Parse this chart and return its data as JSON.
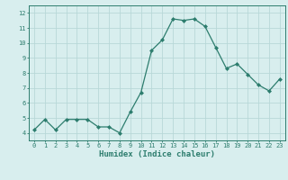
{
  "x": [
    0,
    1,
    2,
    3,
    4,
    5,
    6,
    7,
    8,
    9,
    10,
    11,
    12,
    13,
    14,
    15,
    16,
    17,
    18,
    19,
    20,
    21,
    22,
    23
  ],
  "y": [
    4.2,
    4.9,
    4.2,
    4.9,
    4.9,
    4.9,
    4.4,
    4.4,
    4.0,
    5.4,
    6.7,
    9.5,
    10.2,
    11.6,
    11.5,
    11.6,
    11.1,
    9.7,
    8.3,
    8.6,
    7.9,
    7.2,
    6.8,
    7.6
  ],
  "xlabel": "Humidex (Indice chaleur)",
  "ylim": [
    3.5,
    12.5
  ],
  "xlim": [
    -0.5,
    23.5
  ],
  "yticks": [
    4,
    5,
    6,
    7,
    8,
    9,
    10,
    11,
    12
  ],
  "xticks": [
    0,
    1,
    2,
    3,
    4,
    5,
    6,
    7,
    8,
    9,
    10,
    11,
    12,
    13,
    14,
    15,
    16,
    17,
    18,
    19,
    20,
    21,
    22,
    23
  ],
  "line_color": "#2d7d6e",
  "marker_color": "#2d7d6e",
  "bg_color": "#d8eeee",
  "grid_color": "#b8d8d8",
  "tick_color": "#2d7d6e",
  "xlabel_color": "#2d7d6e",
  "axis_color": "#2d7d6e",
  "tick_fontsize": 5.0,
  "xlabel_fontsize": 6.5,
  "linewidth": 0.9,
  "markersize": 2.0
}
